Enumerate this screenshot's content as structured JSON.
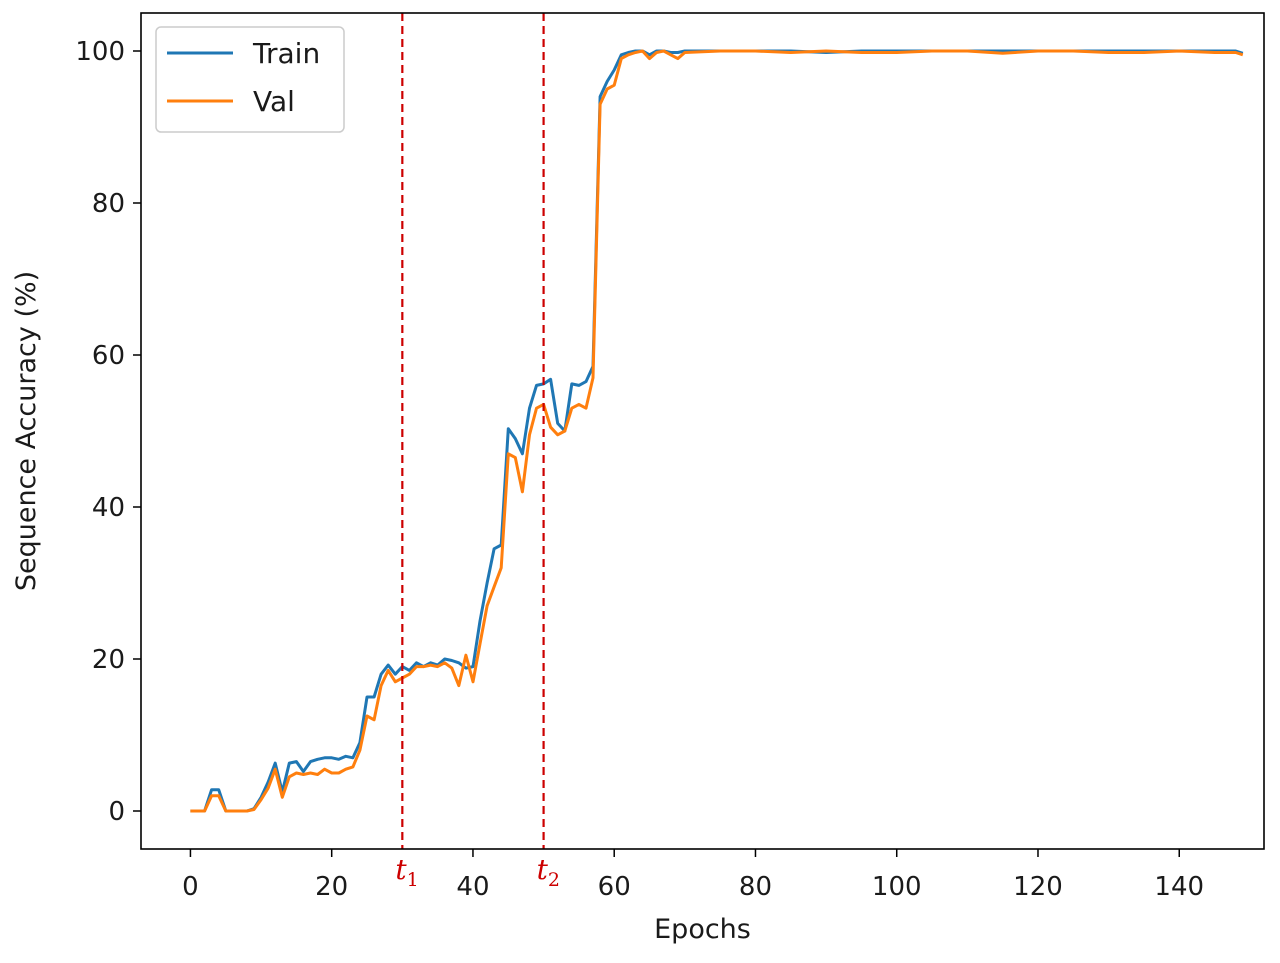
{
  "chart_data": {
    "type": "line",
    "xlabel": "Epochs",
    "ylabel": "Sequence Accuracy (%)",
    "xlim": [
      -7,
      152
    ],
    "ylim": [
      -5,
      105
    ],
    "xticks": [
      0,
      20,
      40,
      60,
      80,
      100,
      120,
      140
    ],
    "yticks": [
      0,
      20,
      40,
      60,
      80,
      100
    ],
    "grid": false,
    "legend_position": "top-left",
    "series": [
      {
        "name": "Train",
        "color": "#1f77b4",
        "x": [
          0,
          1,
          2,
          3,
          4,
          5,
          6,
          7,
          8,
          9,
          10,
          11,
          12,
          13,
          14,
          15,
          16,
          17,
          18,
          19,
          20,
          21,
          22,
          23,
          24,
          25,
          26,
          27,
          28,
          29,
          30,
          31,
          32,
          33,
          34,
          35,
          36,
          37,
          38,
          39,
          40,
          41,
          42,
          43,
          44,
          45,
          46,
          47,
          48,
          49,
          50,
          51,
          52,
          53,
          54,
          55,
          56,
          57,
          58,
          59,
          60,
          61,
          62,
          63,
          64,
          65,
          66,
          67,
          68,
          69,
          70,
          75,
          80,
          85,
          90,
          95,
          100,
          105,
          110,
          115,
          120,
          125,
          130,
          135,
          140,
          145,
          148,
          149
        ],
        "values": [
          0,
          0,
          0,
          2.8,
          2.8,
          0,
          0,
          0,
          0,
          0.3,
          1.8,
          3.8,
          6.3,
          2.5,
          6.3,
          6.5,
          5.2,
          6.5,
          6.8,
          7.0,
          7.0,
          6.8,
          7.2,
          7.0,
          9.0,
          15.0,
          15.0,
          18.0,
          19.2,
          18.0,
          19.0,
          18.5,
          19.5,
          19.0,
          19.5,
          19.2,
          20.0,
          19.8,
          19.5,
          18.8,
          19.0,
          25.0,
          30.0,
          34.5,
          35.0,
          50.3,
          49.0,
          47.0,
          53.0,
          56.0,
          56.2,
          56.8,
          51.0,
          50.0,
          56.2,
          56.0,
          56.5,
          58.5,
          94.0,
          96.0,
          97.5,
          99.5,
          99.8,
          100.0,
          100.0,
          99.5,
          100.0,
          100.0,
          99.8,
          99.8,
          100.0,
          100.0,
          100.0,
          100.0,
          99.8,
          100.0,
          100.0,
          100.0,
          100.0,
          100.0,
          100.0,
          100.0,
          100.0,
          100.0,
          100.0,
          100.0,
          100.0,
          99.7
        ]
      },
      {
        "name": "Val",
        "color": "#ff7f0e",
        "x": [
          0,
          1,
          2,
          3,
          4,
          5,
          6,
          7,
          8,
          9,
          10,
          11,
          12,
          13,
          14,
          15,
          16,
          17,
          18,
          19,
          20,
          21,
          22,
          23,
          24,
          25,
          26,
          27,
          28,
          29,
          30,
          31,
          32,
          33,
          34,
          35,
          36,
          37,
          38,
          39,
          40,
          41,
          42,
          43,
          44,
          45,
          46,
          47,
          48,
          49,
          50,
          51,
          52,
          53,
          54,
          55,
          56,
          57,
          58,
          59,
          60,
          61,
          62,
          63,
          64,
          65,
          66,
          67,
          68,
          69,
          70,
          75,
          80,
          85,
          90,
          95,
          100,
          105,
          110,
          115,
          120,
          125,
          130,
          135,
          140,
          145,
          148,
          149
        ],
        "values": [
          0,
          0,
          0,
          2.0,
          2.0,
          0,
          0,
          0,
          0,
          0.2,
          1.5,
          3.0,
          5.5,
          1.8,
          4.5,
          5.0,
          4.8,
          5.0,
          4.8,
          5.5,
          5.0,
          5.0,
          5.5,
          5.8,
          8.0,
          12.5,
          12.0,
          16.5,
          18.5,
          17.0,
          17.5,
          18.0,
          19.0,
          19.0,
          19.2,
          19.0,
          19.5,
          18.8,
          16.5,
          20.5,
          17.0,
          22.0,
          27.0,
          29.5,
          32.0,
          47.0,
          46.5,
          42.0,
          49.5,
          53.0,
          53.5,
          50.5,
          49.5,
          50.0,
          53.0,
          53.5,
          53.0,
          57.0,
          93.0,
          95.0,
          95.5,
          99.0,
          99.5,
          99.8,
          100.0,
          99.0,
          99.8,
          100.0,
          99.5,
          99.0,
          99.8,
          100.0,
          100.0,
          99.8,
          100.0,
          99.8,
          99.8,
          100.0,
          100.0,
          99.7,
          100.0,
          100.0,
          99.8,
          99.8,
          100.0,
          99.8,
          99.8,
          99.5
        ]
      }
    ],
    "vlines": [
      {
        "x": 30,
        "label_main": "t",
        "label_sub": "1",
        "color": "#cc0000",
        "style": "dashed"
      },
      {
        "x": 50,
        "label_main": "t",
        "label_sub": "2",
        "color": "#cc0000",
        "style": "dashed"
      }
    ]
  }
}
